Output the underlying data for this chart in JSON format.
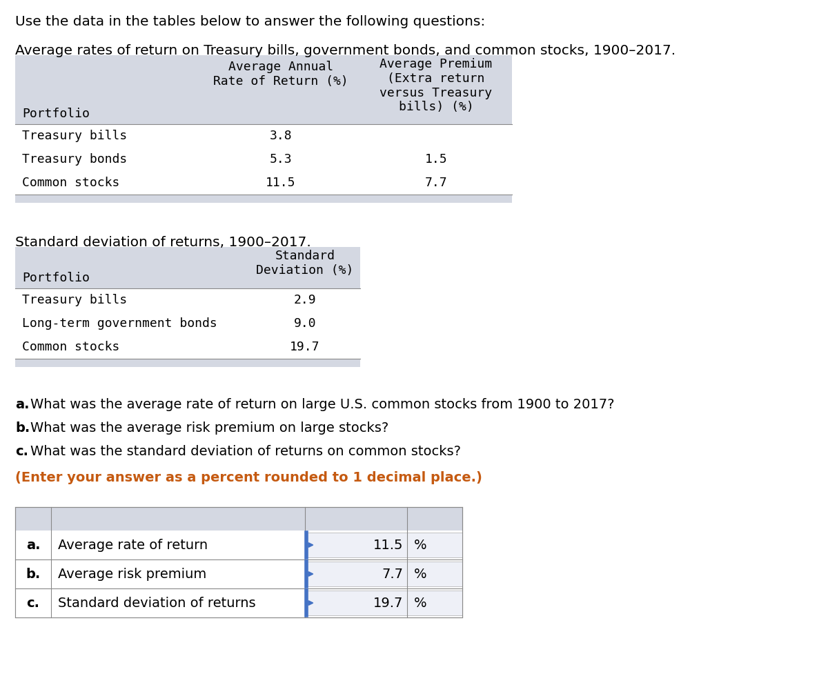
{
  "intro_text": "Use the data in the tables below to answer the following questions:",
  "table1_title": "Average rates of return on Treasury bills, government bonds, and common stocks, 1900–2017.",
  "table1_header_col1": "Portfolio",
  "table1_header_col2": "Average Annual\nRate of Return (%)",
  "table1_header_col3": "Average Premium\n(Extra return\nversus Treasury\nbills) (%)",
  "table1_rows": [
    [
      "Treasury bills",
      "3.8",
      ""
    ],
    [
      "Treasury bonds",
      "5.3",
      "1.5"
    ],
    [
      "Common stocks",
      "11.5",
      "7.7"
    ]
  ],
  "table2_title": "Standard deviation of returns, 1900–2017.",
  "table2_header_col1": "Portfolio",
  "table2_header_col2": "Standard\nDeviation (%)",
  "table2_rows": [
    [
      "Treasury bills",
      "2.9"
    ],
    [
      "Long-term government bonds",
      "9.0"
    ],
    [
      "Common stocks",
      "19.7"
    ]
  ],
  "questions_text": [
    [
      "a.",
      "What was the average rate of return on large U.S. common stocks from 1900 to 2017?"
    ],
    [
      "b.",
      "What was the average risk premium on large stocks?"
    ],
    [
      "c.",
      "What was the standard deviation of returns on common stocks?"
    ]
  ],
  "orange_note": "(Enter your answer as a percent rounded to 1 decimal place.)",
  "answer_rows": [
    [
      "a.",
      "Average rate of return",
      "11.5",
      "%"
    ],
    [
      "b.",
      "Average risk premium",
      "7.7",
      "%"
    ],
    [
      "c.",
      "Standard deviation of returns",
      "19.7",
      "%"
    ]
  ],
  "table_bg_color": "#d4d8e2",
  "answer_blue_border": "#4472C4",
  "orange_color": "#c55a11",
  "font_size_intro": 14.5,
  "font_size_title": 14.5,
  "font_size_table": 13,
  "font_size_questions": 14,
  "font_size_answer": 14
}
